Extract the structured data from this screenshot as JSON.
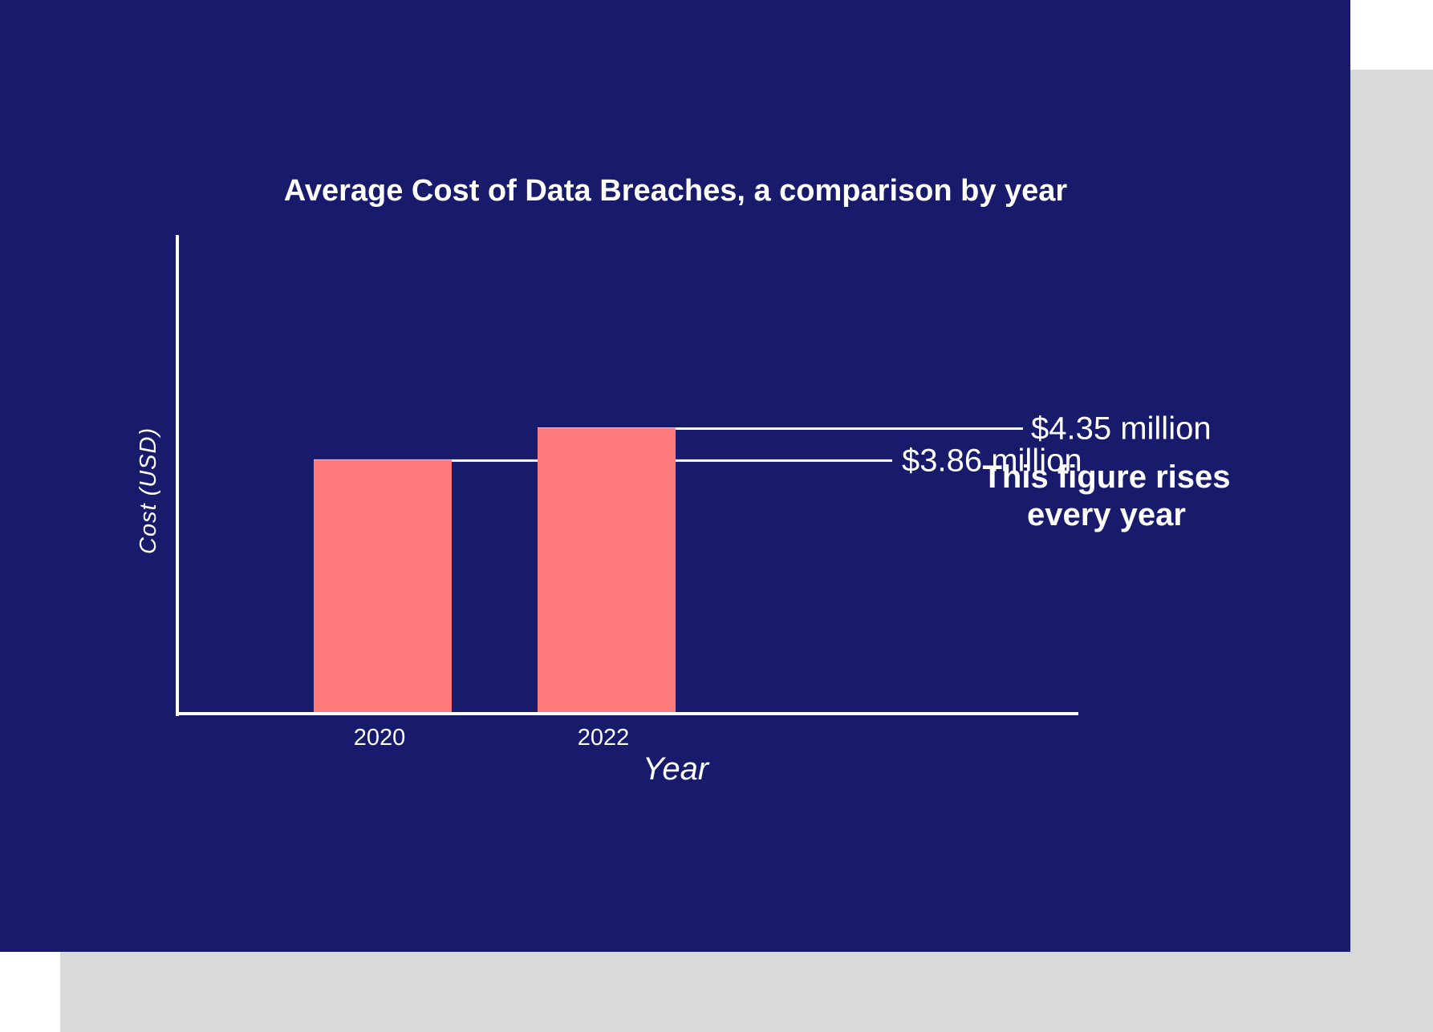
{
  "colors": {
    "background": "#181a6b",
    "shadow": "#d9d9d9",
    "bar": "#ff7b7b",
    "foreground": "#ffffff"
  },
  "chart_data": {
    "type": "bar",
    "title": "Average Cost of Data Breaches, a comparison by year",
    "xlabel": "Year",
    "ylabel": "Cost (USD)",
    "categories": [
      "2020",
      "2022"
    ],
    "values": [
      3.86,
      4.35
    ],
    "data_labels": [
      "$3.86 million",
      "$4.35 million"
    ],
    "unit": "million USD",
    "annotation": [
      "This figure rises",
      "every year"
    ],
    "grid": false,
    "legend": "none"
  }
}
